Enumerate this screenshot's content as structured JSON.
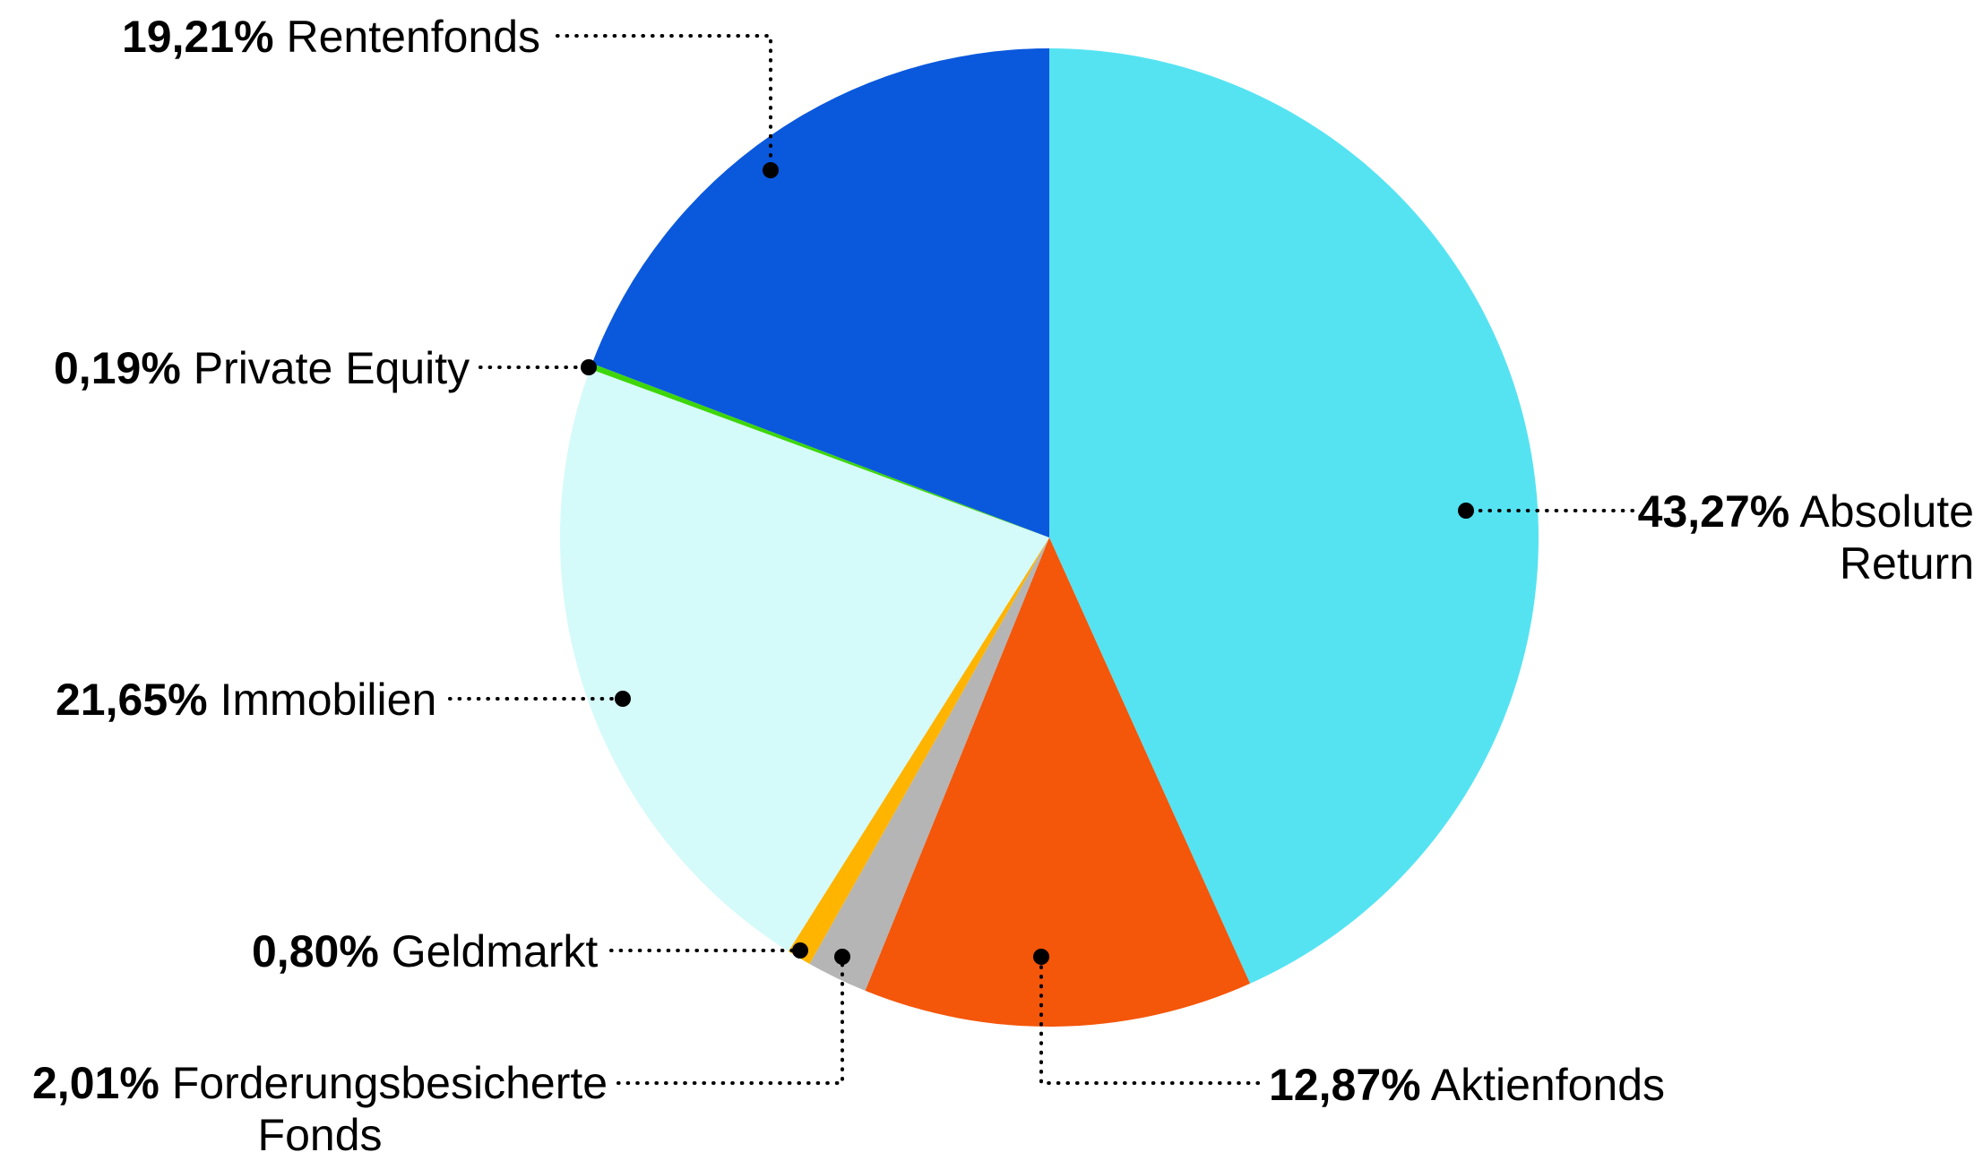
{
  "chart_data": {
    "type": "pie",
    "title": "",
    "start_angle_deg": 0,
    "direction": "clockwise",
    "unit": "%",
    "legend_position": "callout-labels",
    "background_color": "#FFFFFF",
    "slices": [
      {
        "name": "Absolute Return",
        "value": 43.27,
        "pct_text": "43,27%",
        "color": "#55E3F2"
      },
      {
        "name": "Aktienfonds",
        "value": 12.87,
        "pct_text": "12,87%",
        "color": "#F4560A"
      },
      {
        "name": "Forderungsbesicherte Fonds",
        "value": 2.01,
        "pct_text": "2,01%",
        "color": "#B5B5B5"
      },
      {
        "name": "Geldmarkt",
        "value": 0.8,
        "pct_text": "0,80%",
        "color": "#FFB400"
      },
      {
        "name": "Immobilien",
        "value": 21.65,
        "pct_text": "21,65%",
        "color": "#D5FAFA"
      },
      {
        "name": "Private Equity",
        "value": 0.19,
        "pct_text": "0,19%",
        "color": "#3ED60B"
      },
      {
        "name": "Rentenfonds",
        "value": 19.21,
        "pct_text": "19,21%",
        "color": "#0A58DC"
      }
    ]
  },
  "callouts": {
    "rentenfonds": {
      "pct": "19,21%",
      "label": "Rentenfonds"
    },
    "private_equity": {
      "pct": "0,19%",
      "label": "Private Equity"
    },
    "immobilien": {
      "pct": "21,65%",
      "label": "Immobilien"
    },
    "geldmarkt": {
      "pct": "0,80%",
      "label": "Geldmarkt"
    },
    "forderung": {
      "pct": "2,01%",
      "label_line1": "Forderungsbesicherte",
      "label_line2": "Fonds"
    },
    "aktienfonds": {
      "pct": "12,87%",
      "label": "Aktienfonds"
    },
    "absolute_return": {
      "pct": "43,27%",
      "label_line1": "Absolute",
      "label_line2": "Return"
    }
  }
}
